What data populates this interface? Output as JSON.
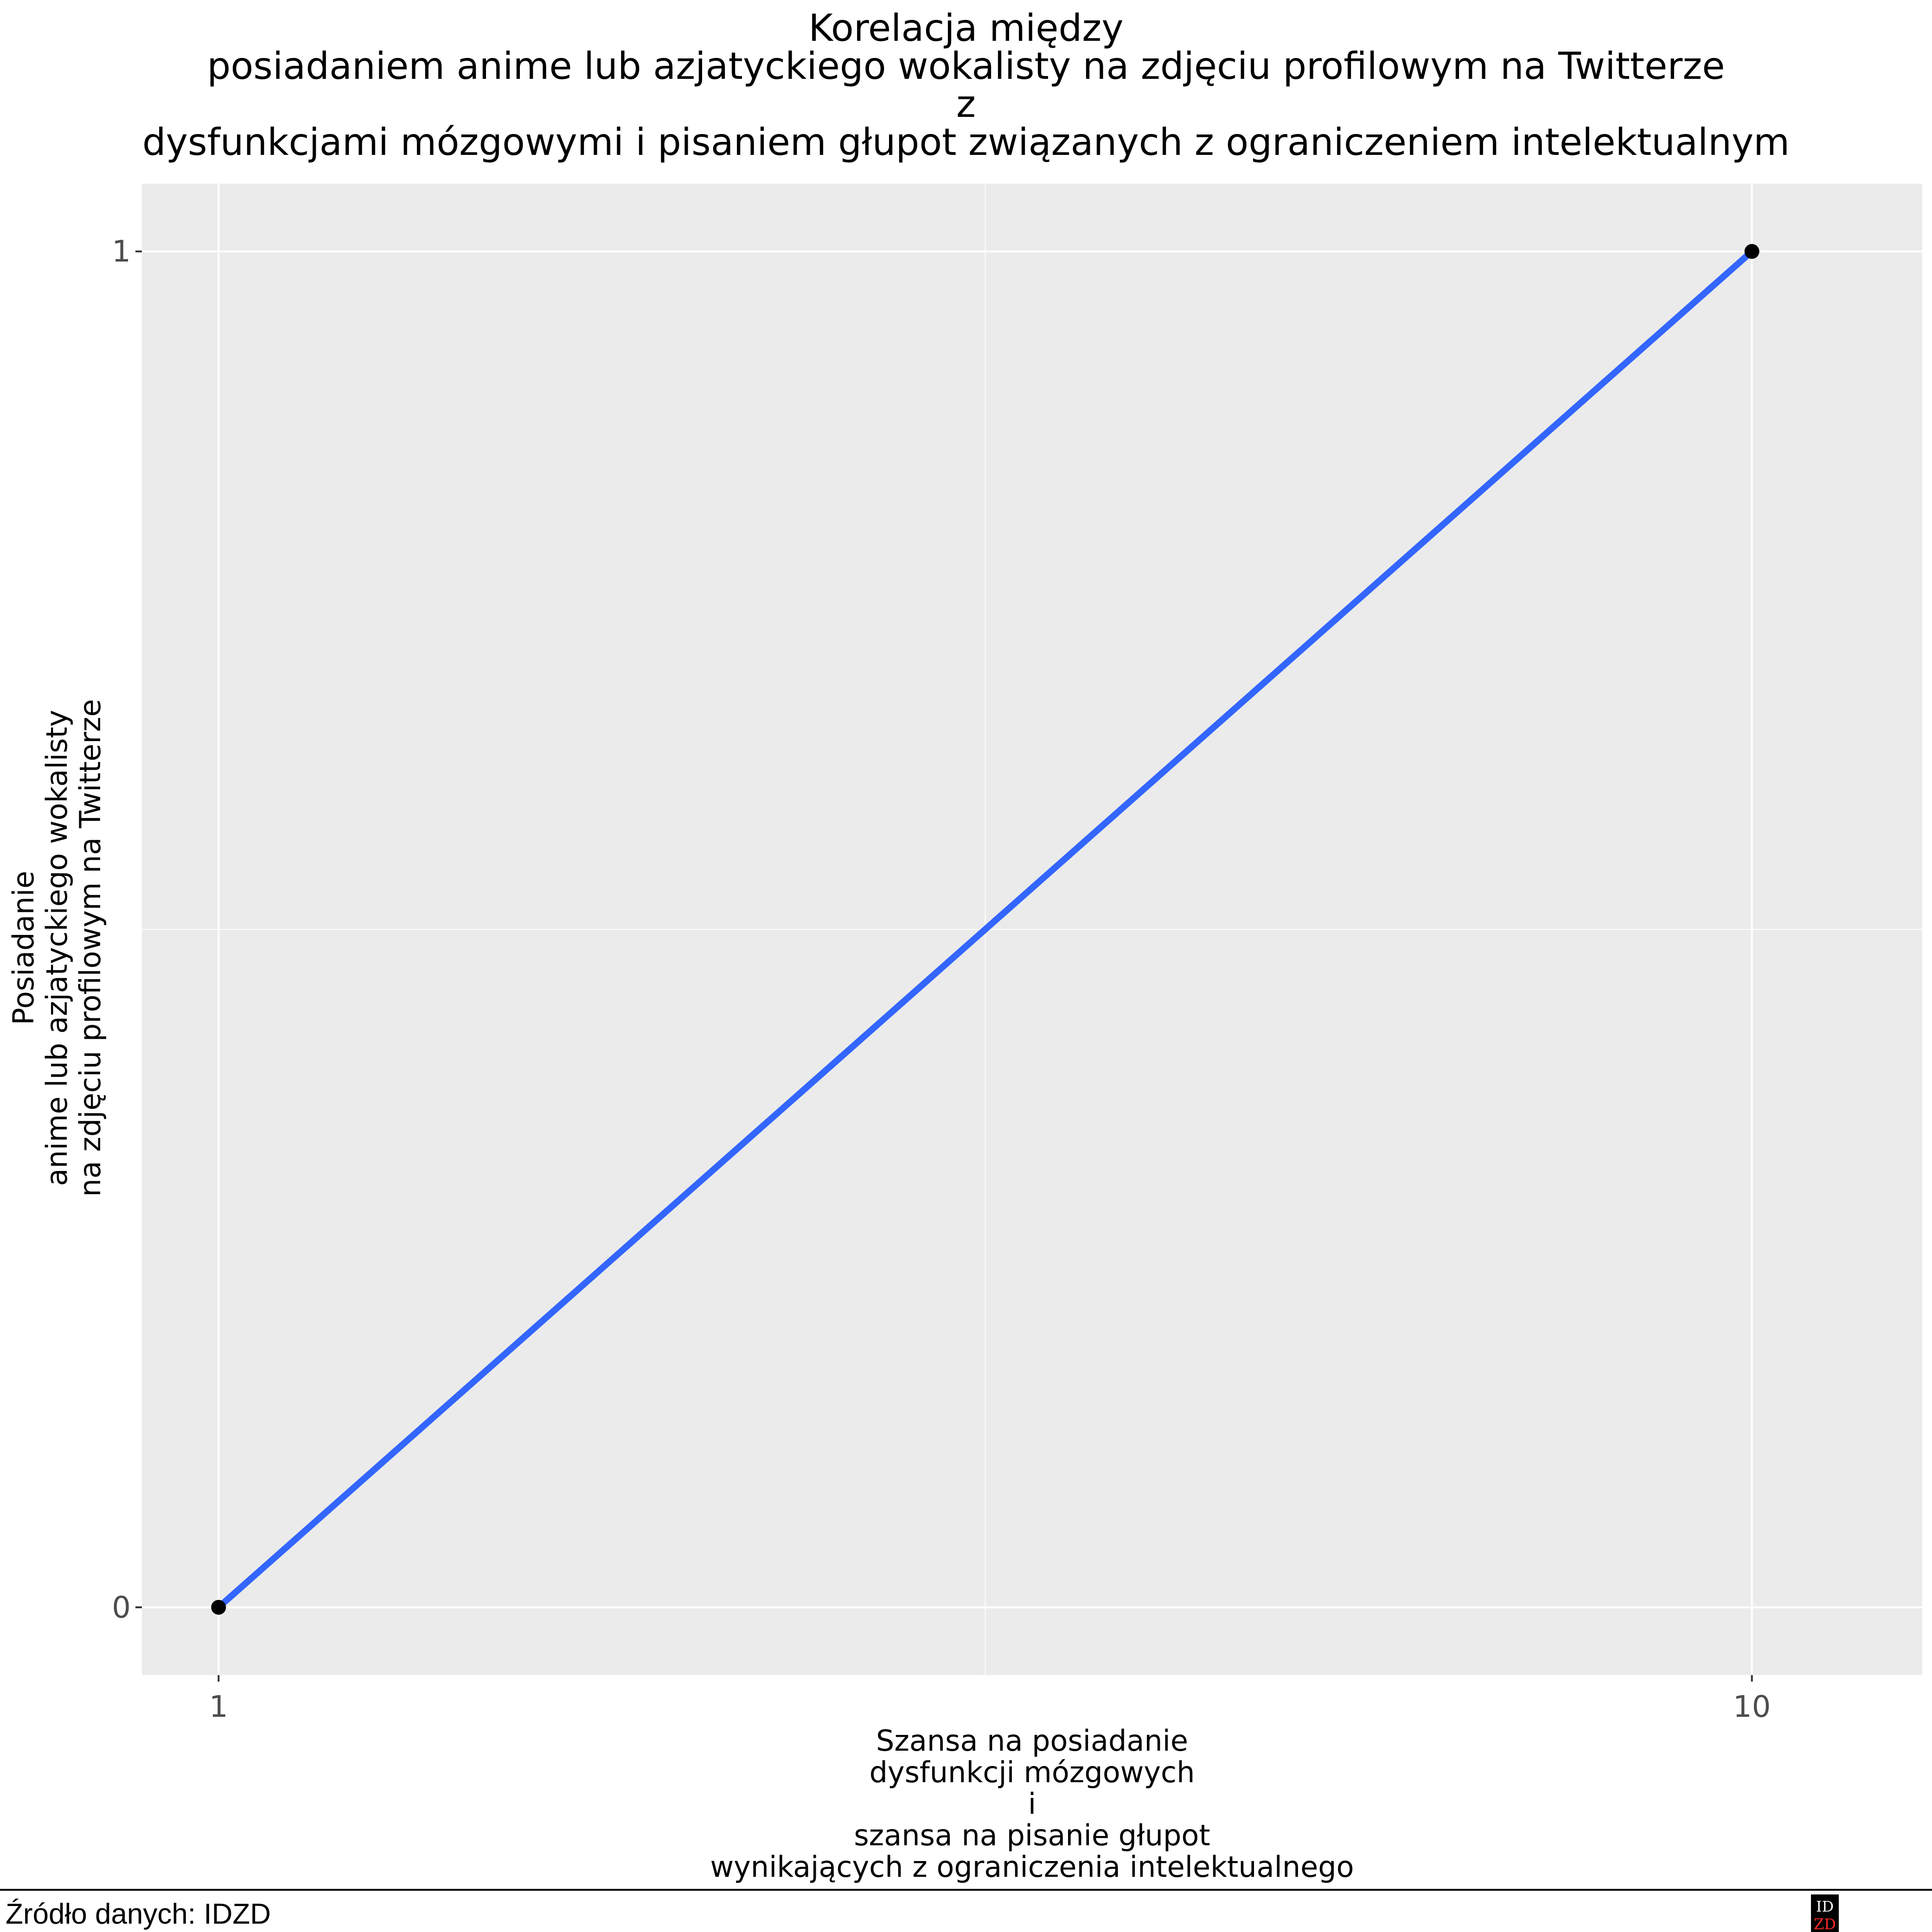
{
  "chart_data": {
    "type": "line",
    "title_lines": [
      "Korelacja między",
      "posiadaniem anime lub azjatyckiego wokalisty na zdjęciu profilowym na Twitterze",
      "z",
      "dysfunkcjami mózgowymi i pisaniem głupot związanych z ograniczeniem intelektualnym"
    ],
    "xlabel_lines": [
      "Szansa na posiadanie",
      "dysfunkcji mózgowych",
      "i",
      "szansa na pisanie głupot",
      "wynikających z ograniczenia intelektualnego"
    ],
    "ylabel_lines": [
      "Posiadanie",
      "anime lub azjatyckiego wokalisty",
      "na zdjęciu profilowym na Twitterze"
    ],
    "x_ticks": [
      "1",
      "10"
    ],
    "y_ticks": [
      "0",
      "1"
    ],
    "x_scale": "linear",
    "xlim": [
      0.55,
      11.0
    ],
    "ylim": [
      -0.05,
      1.05
    ],
    "grid": true,
    "legend": "none",
    "series": [
      {
        "x": [
          1,
          10
        ],
        "y": [
          0,
          1
        ]
      }
    ],
    "colors": {
      "line": "#3366ff",
      "points": "#000000",
      "panel": "#ebebeb",
      "grid": "#ffffff"
    }
  },
  "caption": "Źródło danych: IDZD",
  "logo": {
    "line1": "IDZD"
  }
}
